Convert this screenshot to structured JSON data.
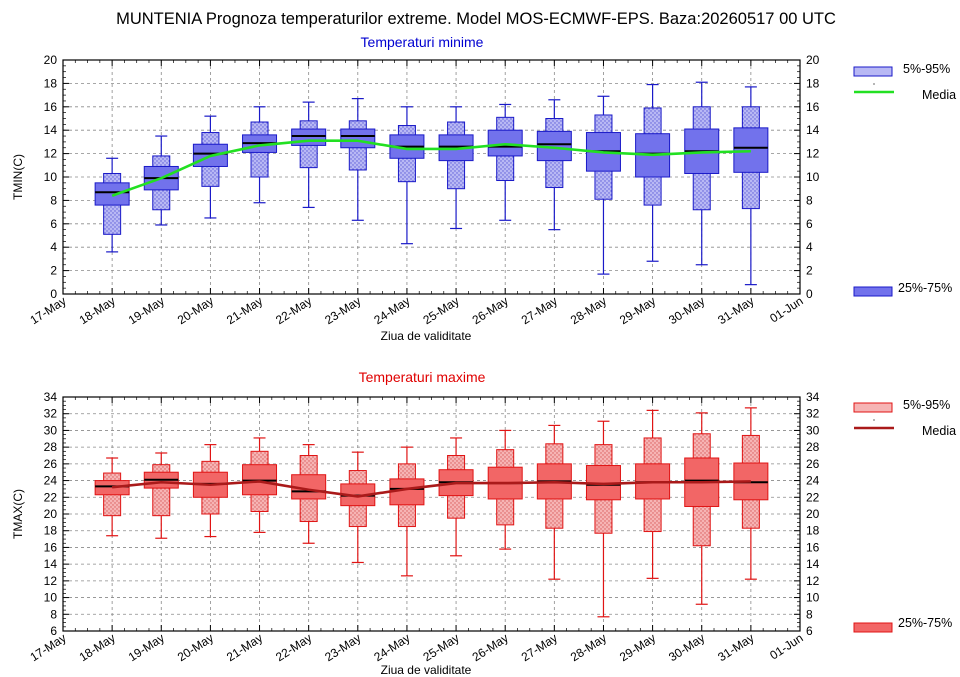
{
  "title": "MUNTENIA  Prognoza temperaturilor extreme.  Model MOS-ECMWF-EPS. Baza:20260517 00 UTC",
  "chart_data": [
    {
      "type": "boxplot",
      "title": "Temperaturi minime",
      "ylabel": "TMIN(C)",
      "xlabel": "Ziua de validitate",
      "ylim": [
        0,
        20
      ],
      "yticks": [
        0,
        2,
        4,
        6,
        8,
        10,
        12,
        14,
        16,
        18,
        20
      ],
      "xtick_labels": [
        "17-May",
        "18-May",
        "19-May",
        "20-May",
        "21-May",
        "22-May",
        "23-May",
        "24-May",
        "25-May",
        "26-May",
        "27-May",
        "28-May",
        "29-May",
        "30-May",
        "31-May",
        "01-Jun"
      ],
      "categories": [
        "18-May",
        "19-May",
        "20-May",
        "21-May",
        "22-May",
        "23-May",
        "24-May",
        "25-May",
        "26-May",
        "27-May",
        "28-May",
        "29-May",
        "30-May",
        "31-May"
      ],
      "whisker_low": [
        3.6,
        5.9,
        6.5,
        7.8,
        7.4,
        6.3,
        4.3,
        5.6,
        6.3,
        5.5,
        1.7,
        2.8,
        2.5,
        0.8
      ],
      "p5": [
        5.1,
        7.2,
        9.2,
        10.0,
        10.8,
        10.6,
        9.6,
        9.0,
        9.7,
        9.1,
        8.1,
        7.6,
        7.2,
        7.3
      ],
      "p25": [
        7.6,
        8.9,
        10.9,
        12.1,
        12.7,
        12.5,
        11.6,
        11.4,
        11.8,
        11.4,
        10.5,
        10.0,
        10.3,
        10.4
      ],
      "median": [
        8.7,
        9.9,
        12.0,
        12.9,
        13.5,
        13.5,
        12.6,
        12.6,
        12.6,
        12.8,
        12.2,
        12.0,
        12.2,
        12.5
      ],
      "p75": [
        9.5,
        10.9,
        12.8,
        13.6,
        14.1,
        14.1,
        13.6,
        13.6,
        14.0,
        13.9,
        13.8,
        13.7,
        14.1,
        14.2
      ],
      "p95": [
        10.3,
        11.8,
        13.8,
        14.7,
        14.8,
        14.8,
        14.4,
        14.7,
        15.1,
        15.0,
        15.3,
        15.9,
        16.0,
        16.0
      ],
      "whisker_high": [
        11.6,
        13.5,
        15.2,
        16.0,
        16.4,
        16.7,
        16.0,
        16.0,
        16.2,
        16.6,
        16.9,
        17.9,
        18.1,
        17.7
      ],
      "mean": [
        8.4,
        9.9,
        11.8,
        12.7,
        13.1,
        13.1,
        12.4,
        12.4,
        12.8,
        12.5,
        12.1,
        11.9,
        12.1,
        12.2
      ],
      "colors": {
        "band_outer": "#b8b8f4",
        "band_inner": "#7272ec",
        "edge": "#1a1ac8",
        "mean": "#22e022",
        "median": "#000000",
        "title": "#0000d0"
      },
      "legend": {
        "outer": "5%-95%",
        "mean": "Media",
        "inner": "25%-75%"
      }
    },
    {
      "type": "boxplot",
      "title": "Temperaturi maxime",
      "ylabel": "TMAX(C)",
      "xlabel": "Ziua de validitate",
      "ylim": [
        6,
        34
      ],
      "yticks": [
        6,
        8,
        10,
        12,
        14,
        16,
        18,
        20,
        22,
        24,
        26,
        28,
        30,
        32,
        34
      ],
      "xtick_labels": [
        "17-May",
        "18-May",
        "19-May",
        "20-May",
        "21-May",
        "22-May",
        "23-May",
        "24-May",
        "25-May",
        "26-May",
        "27-May",
        "28-May",
        "29-May",
        "30-May",
        "31-May",
        "01-Jun"
      ],
      "categories": [
        "18-May",
        "19-May",
        "20-May",
        "21-May",
        "22-May",
        "23-May",
        "24-May",
        "25-May",
        "26-May",
        "27-May",
        "28-May",
        "29-May",
        "30-May",
        "31-May"
      ],
      "whisker_low": [
        17.4,
        17.1,
        17.3,
        17.8,
        16.5,
        14.2,
        12.6,
        15.0,
        15.8,
        12.2,
        7.7,
        12.3,
        9.2,
        12.2
      ],
      "p5": [
        19.8,
        19.8,
        20.0,
        20.3,
        19.1,
        18.5,
        18.5,
        19.5,
        18.7,
        18.3,
        17.7,
        17.9,
        16.2,
        18.3
      ],
      "p25": [
        22.3,
        23.1,
        22.0,
        22.3,
        21.8,
        21.0,
        21.1,
        22.2,
        21.8,
        21.8,
        21.7,
        21.8,
        20.9,
        21.7
      ],
      "median": [
        23.3,
        24.1,
        23.6,
        24.0,
        22.7,
        22.2,
        23.0,
        23.8,
        23.7,
        23.9,
        23.5,
        23.8,
        24.0,
        23.8
      ],
      "p75": [
        24.0,
        25.0,
        25.0,
        25.9,
        24.7,
        23.6,
        24.2,
        25.3,
        25.6,
        26.0,
        25.8,
        26.0,
        26.7,
        26.1
      ],
      "p95": [
        24.9,
        25.9,
        26.3,
        27.5,
        27.0,
        25.2,
        26.0,
        27.0,
        27.7,
        28.4,
        28.3,
        29.1,
        29.6,
        29.4
      ],
      "whisker_high": [
        26.7,
        27.3,
        28.3,
        29.1,
        28.3,
        27.4,
        28.0,
        29.1,
        30.0,
        30.6,
        31.1,
        32.4,
        32.1,
        32.7
      ],
      "mean": [
        23.2,
        23.8,
        23.5,
        23.9,
        22.9,
        22.1,
        23.0,
        23.7,
        23.7,
        23.8,
        23.6,
        23.8,
        23.8,
        23.9
      ],
      "colors": {
        "band_outer": "#f6b4b4",
        "band_inner": "#f26666",
        "edge": "#e01414",
        "mean": "#aa1a1a",
        "median": "#000000",
        "title": "#e00000"
      },
      "legend": {
        "outer": "5%-95%",
        "mean": "Media",
        "inner": "25%-75%"
      }
    }
  ]
}
